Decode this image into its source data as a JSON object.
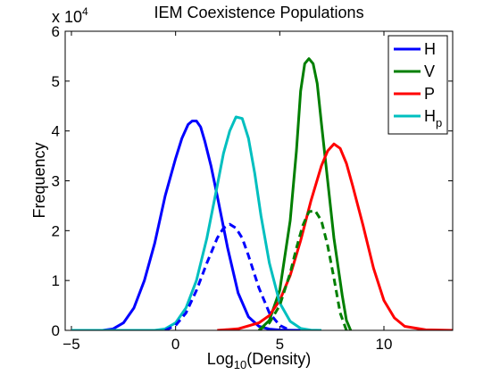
{
  "chart_data": {
    "type": "line",
    "title": "IEM Coexistence Populations",
    "xlabel": {
      "prefix": "Log",
      "subscript": "10",
      "suffix": "(Density)"
    },
    "ylabel": "Frequency",
    "y_multiplier": "x 10",
    "y_multiplier_exp": "4",
    "xlim": [
      -5.3,
      13.3
    ],
    "ylim": [
      0,
      60000
    ],
    "xticks": [
      -5,
      0,
      5,
      10
    ],
    "xtick_labels": [
      "−5",
      "0",
      "5",
      "10"
    ],
    "yticks": [
      0,
      10000,
      20000,
      30000,
      40000,
      50000,
      60000
    ],
    "ytick_labels": [
      "0",
      "1",
      "2",
      "3",
      "4",
      "5",
      "6"
    ],
    "legend_position": "top-right",
    "series": [
      {
        "name": "H",
        "name_sub": "",
        "color": "#0000ff",
        "style": "solid",
        "in_legend": true,
        "x": [
          -5.0,
          -3.5,
          -3.0,
          -2.5,
          -2.0,
          -1.5,
          -1.0,
          -0.5,
          0.0,
          0.3,
          0.6,
          0.8,
          1.0,
          1.2,
          1.4,
          1.7,
          2.0,
          2.5,
          3.0,
          3.5,
          4.0,
          4.5,
          5.0,
          5.5,
          6.0
        ],
        "y": [
          0,
          0,
          300,
          1500,
          4500,
          10000,
          17500,
          27000,
          34500,
          38500,
          41300,
          42000,
          42000,
          40800,
          38000,
          33000,
          27000,
          16500,
          7500,
          2700,
          800,
          250,
          80,
          20,
          0
        ]
      },
      {
        "name": "V",
        "name_sub": "",
        "color": "#007f00",
        "style": "solid",
        "in_legend": true,
        "x": [
          4.0,
          4.5,
          5.0,
          5.5,
          5.8,
          6.0,
          6.2,
          6.4,
          6.6,
          6.8,
          7.0,
          7.3,
          7.6,
          8.0,
          8.2,
          8.4
        ],
        "y": [
          0,
          2000,
          8000,
          22000,
          36000,
          48000,
          53500,
          54500,
          53500,
          49500,
          41500,
          30000,
          18500,
          7000,
          2000,
          0
        ]
      },
      {
        "name": "P",
        "name_sub": "",
        "color": "#ff0000",
        "style": "solid",
        "in_legend": true,
        "x": [
          2.0,
          3.0,
          4.0,
          4.5,
          5.0,
          5.5,
          6.0,
          6.5,
          7.0,
          7.3,
          7.6,
          7.9,
          8.2,
          8.5,
          9.0,
          9.5,
          10.0,
          10.5,
          11.0,
          12.0,
          13.3
        ],
        "y": [
          0,
          300,
          1500,
          3000,
          6000,
          11000,
          18000,
          26000,
          33000,
          36000,
          37400,
          36500,
          33500,
          29000,
          21000,
          12500,
          6000,
          2500,
          800,
          100,
          0
        ]
      },
      {
        "name": "H",
        "name_sub": "p",
        "color": "#00bfbf",
        "style": "solid",
        "in_legend": true,
        "x": [
          -5.0,
          -1.0,
          -0.5,
          0.0,
          0.5,
          1.0,
          1.5,
          2.0,
          2.3,
          2.6,
          2.9,
          3.2,
          3.5,
          3.8,
          4.1,
          4.5,
          5.0,
          5.5,
          6.0,
          6.5,
          7.0
        ],
        "y": [
          0,
          0,
          300,
          1500,
          4500,
          10000,
          18500,
          29000,
          35500,
          40000,
          42800,
          42500,
          38500,
          31500,
          23000,
          13500,
          5500,
          1800,
          400,
          60,
          0
        ]
      },
      {
        "name": "",
        "name_sub": "",
        "color": "#0000ff",
        "style": "dashed",
        "in_legend": false,
        "x": [
          -0.5,
          0.0,
          0.5,
          1.0,
          1.5,
          2.0,
          2.3,
          2.6,
          2.9,
          3.2,
          3.5,
          4.0,
          4.5,
          5.0,
          5.5
        ],
        "y": [
          0,
          1000,
          3500,
          8000,
          13500,
          18500,
          20500,
          21300,
          20500,
          18500,
          15000,
          8500,
          3500,
          1000,
          0
        ]
      },
      {
        "name": "",
        "name_sub": "",
        "color": "#007f00",
        "style": "dashed",
        "in_legend": false,
        "x": [
          4.0,
          4.5,
          5.0,
          5.5,
          5.8,
          6.1,
          6.4,
          6.7,
          7.0,
          7.3,
          7.6,
          7.9,
          8.2
        ],
        "y": [
          0,
          1500,
          5000,
          11500,
          16500,
          21000,
          23800,
          24000,
          22000,
          17000,
          10500,
          3500,
          0
        ]
      }
    ]
  }
}
